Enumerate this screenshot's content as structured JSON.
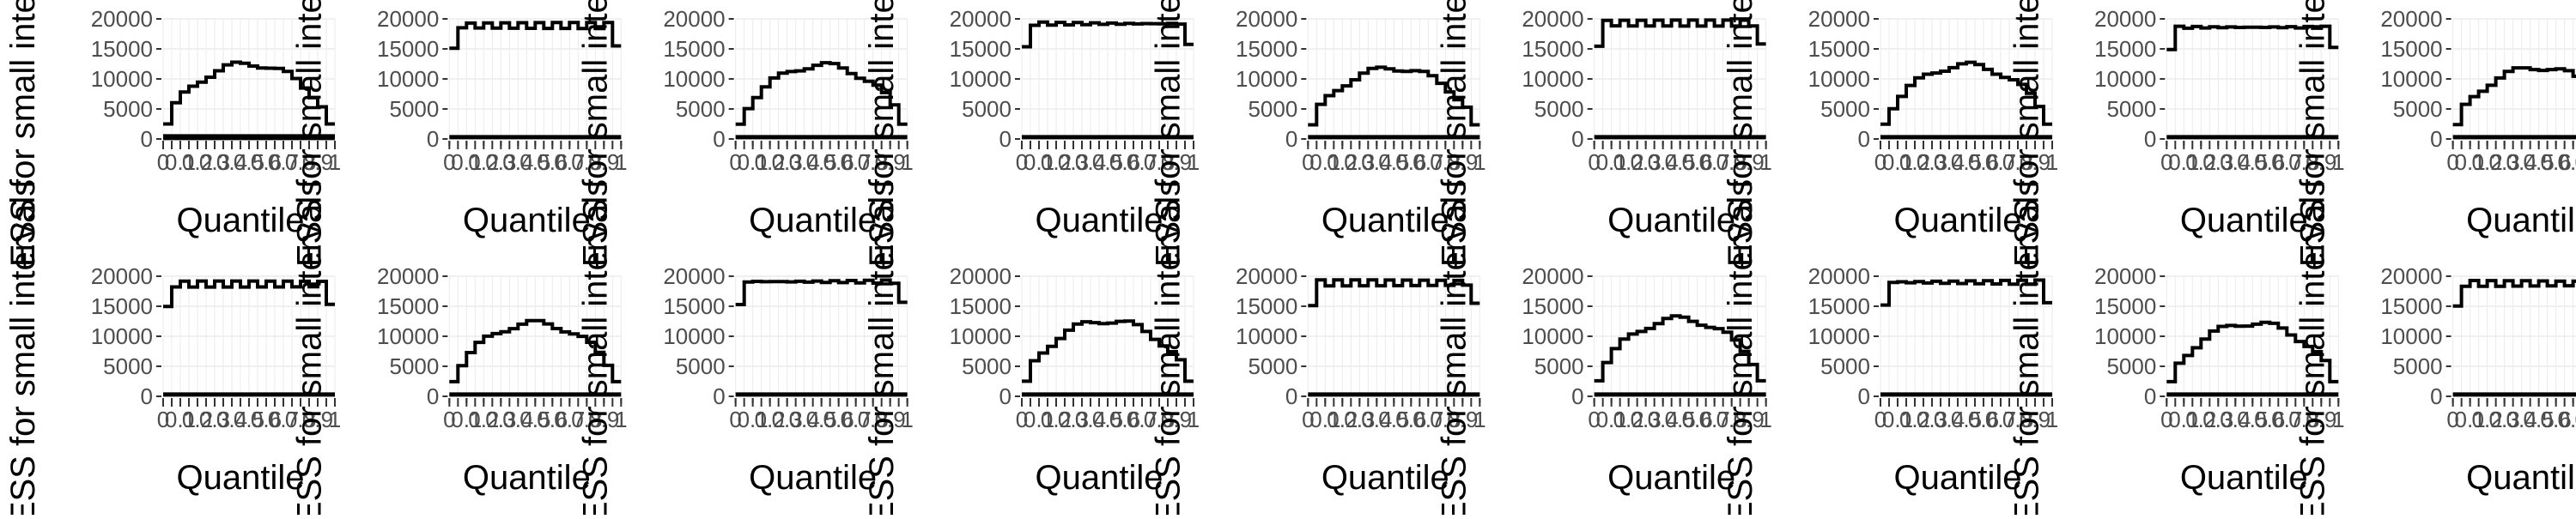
{
  "figure": {
    "rows": 2,
    "cols": 9,
    "panel_count": 18
  },
  "chart_data": {
    "type": "line",
    "xlabel": "Quantile",
    "ylabel": "ESS for small intervals",
    "ylim": [
      0,
      20000
    ],
    "xlim": [
      0,
      1
    ],
    "yticks": [
      0,
      5000,
      10000,
      15000,
      20000
    ],
    "ytick_labels": [
      "0",
      "5000",
      "10000",
      "15000",
      "20000"
    ],
    "xtick_labels": [
      "0",
      "0.1",
      "0.2",
      "0.3",
      "0.4",
      "0.5",
      "0.6",
      "0.7",
      "0.8",
      "0.9",
      "1"
    ],
    "grid": true,
    "panels": [
      {
        "profile": "hump",
        "peak": 12500,
        "thick_baseline": true
      },
      {
        "profile": "flat",
        "level": 18900,
        "thick_baseline": false
      },
      {
        "profile": "hump",
        "peak": 12300,
        "thick_baseline": false
      },
      {
        "profile": "flat",
        "level": 19200,
        "thick_baseline": false
      },
      {
        "profile": "hump",
        "peak": 11800,
        "thick_baseline": false
      },
      {
        "profile": "flat",
        "level": 19300,
        "thick_baseline": false
      },
      {
        "profile": "hump",
        "peak": 12300,
        "thick_baseline": false
      },
      {
        "profile": "flat",
        "level": 18600,
        "thick_baseline": false
      },
      {
        "profile": "hump",
        "peak": 11900,
        "thick_baseline": false
      },
      {
        "profile": "flat",
        "level": 18700,
        "thick_baseline": false
      },
      {
        "profile": "hump",
        "peak": 12200,
        "thick_baseline": false
      },
      {
        "profile": "flat",
        "level": 19100,
        "thick_baseline": false
      },
      {
        "profile": "hump",
        "peak": 12600,
        "thick_baseline": false
      },
      {
        "profile": "flat",
        "level": 18900,
        "thick_baseline": false
      },
      {
        "profile": "hump",
        "peak": 12900,
        "thick_baseline": false
      },
      {
        "profile": "flat",
        "level": 19000,
        "thick_baseline": false
      },
      {
        "profile": "hump",
        "peak": 12200,
        "thick_baseline": false
      },
      {
        "profile": "flat",
        "level": 18800,
        "thick_baseline": false
      }
    ]
  }
}
